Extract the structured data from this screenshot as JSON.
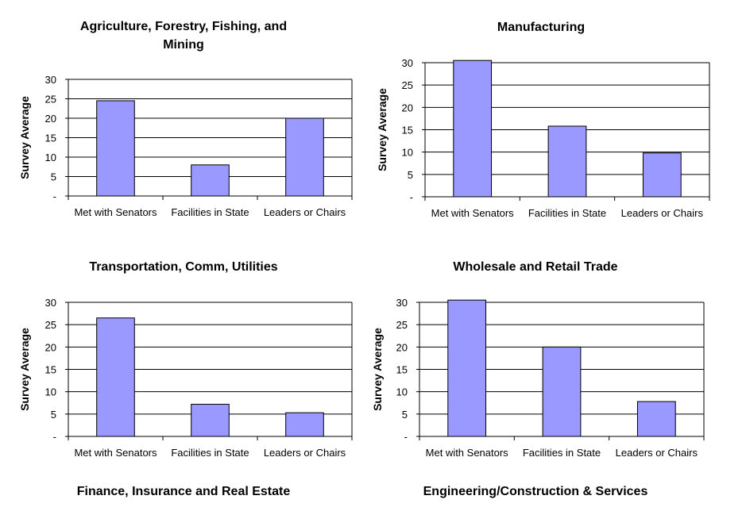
{
  "chart_data": [
    {
      "type": "bar",
      "title_lines": [
        "Agriculture, Forestry, Fishing, and",
        "Mining"
      ],
      "ylabel": "Survey Average",
      "xlabel": "",
      "categories": [
        "Met with Senators",
        "Facilities in State",
        "Leaders or Chairs"
      ],
      "values": [
        24.5,
        8,
        20
      ],
      "ylim": [
        0,
        30
      ],
      "yticks": [
        0,
        5,
        10,
        15,
        20,
        25,
        30
      ],
      "ytick_labels": [
        "-",
        "5",
        "10",
        "15",
        "20",
        "25",
        "30"
      ],
      "grid": true,
      "legend": "none"
    },
    {
      "type": "bar",
      "title_lines": [
        "Manufacturing"
      ],
      "ylabel": "Survey Average",
      "xlabel": "",
      "categories": [
        "Met with Senators",
        "Facilities in State",
        "Leaders or Chairs"
      ],
      "values": [
        30.5,
        15.8,
        9.8
      ],
      "ylim": [
        0,
        30
      ],
      "yticks": [
        0,
        5,
        10,
        15,
        20,
        25,
        30
      ],
      "ytick_labels": [
        "-",
        "5",
        "10",
        "15",
        "20",
        "25",
        "30"
      ],
      "grid": true,
      "legend": "none"
    },
    {
      "type": "bar",
      "title_lines": [
        "Transportation, Comm, Utilities"
      ],
      "ylabel": "Survey Average",
      "xlabel": "",
      "categories": [
        "Met with Senators",
        "Facilities in State",
        "Leaders or Chairs"
      ],
      "values": [
        26.5,
        7.2,
        5.3
      ],
      "ylim": [
        0,
        30
      ],
      "yticks": [
        0,
        5,
        10,
        15,
        20,
        25,
        30
      ],
      "ytick_labels": [
        "-",
        "5",
        "10",
        "15",
        "20",
        "25",
        "30"
      ],
      "grid": true,
      "legend": "none"
    },
    {
      "type": "bar",
      "title_lines": [
        "Wholesale and Retail Trade"
      ],
      "ylabel": "Survey Average",
      "xlabel": "",
      "categories": [
        "Met with Senators",
        "Facilities in State",
        "Leaders or Chairs"
      ],
      "values": [
        30.5,
        20,
        7.8
      ],
      "ylim": [
        0,
        30
      ],
      "yticks": [
        0,
        5,
        10,
        15,
        20,
        25,
        30
      ],
      "ytick_labels": [
        "-",
        "5",
        "10",
        "15",
        "20",
        "25",
        "30"
      ],
      "grid": true,
      "legend": "none"
    }
  ],
  "bottom_titles": [
    "Finance, Insurance and Real Estate",
    "Engineering/Construction & Services"
  ],
  "colors": {
    "bar_fill": "#9999ff",
    "bar_stroke": "#000000",
    "grid": "#000000",
    "axis": "#000000",
    "background": "#ffffff"
  }
}
